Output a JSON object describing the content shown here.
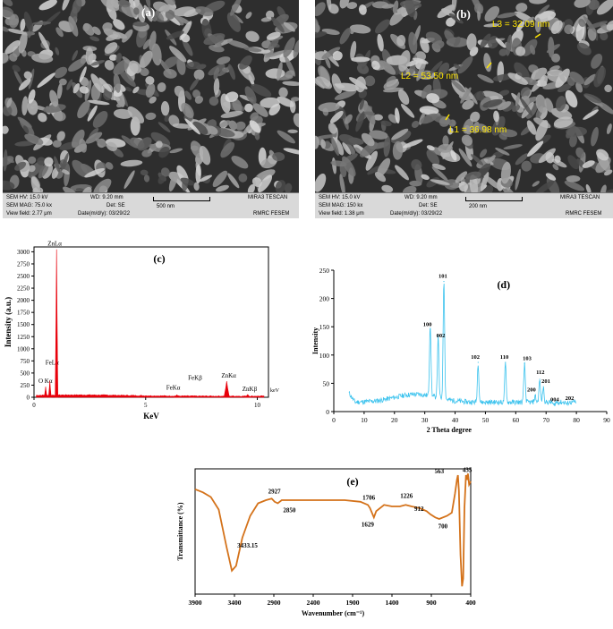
{
  "panels": {
    "a": {
      "label": "(a)",
      "info": {
        "hv": "SEM HV: 15.0 kV",
        "wd": "WD: 9.20 mm",
        "mag": "SEM MAG: 75.0 kx",
        "det": "Det: SE",
        "field": "View field: 2.77 μm",
        "date": "Date(m/d/y): 03/29/22",
        "scale": "500 nm",
        "brand": "MIRA3 TESCAN",
        "lab": "RMRC  FESEM"
      }
    },
    "b": {
      "label": "(b)",
      "measurements": [
        "L3 = 32.09 nm",
        "L2 = 53.50 nm",
        "L1 = 36.98 nm"
      ],
      "info": {
        "hv": "SEM HV: 15.0 kV",
        "wd": "WD: 9.20 mm",
        "mag": "SEM MAG: 150 kx",
        "det": "Det: SE",
        "field": "View field: 1.38 μm",
        "date": "Date(m/d/y): 03/29/22",
        "scale": "200 nm",
        "brand": "MIRA3 TESCAN",
        "lab": "RMRC  FESEM"
      }
    },
    "c": {
      "label": "(c)"
    },
    "d": {
      "label": "(d)"
    },
    "e": {
      "label": "(e)"
    }
  },
  "chart_data": [
    {
      "panel": "c",
      "type": "line",
      "xlabel": "KeV",
      "ylabel": "Intensity (a.u.)",
      "unit_label": "keV",
      "xlim": [
        0,
        10.5
      ],
      "ylim": [
        0,
        3100
      ],
      "x_ticks": [
        0,
        5,
        10
      ],
      "y_ticks": [
        0,
        250,
        500,
        750,
        1000,
        1250,
        1500,
        1750,
        2000,
        2250,
        2500,
        2750,
        3000
      ],
      "color": "#e8000b",
      "peaks": [
        {
          "x": 0.52,
          "y": 220,
          "label": "O Kα"
        },
        {
          "x": 0.71,
          "y": 340,
          "label": "FeLα"
        },
        {
          "x": 1.01,
          "y": 3050,
          "label": "ZnLα"
        },
        {
          "x": 6.4,
          "y": 50,
          "label": "FeKα"
        },
        {
          "x": 7.06,
          "y": 25,
          "label": "FeKβ"
        },
        {
          "x": 8.63,
          "y": 330,
          "label": "ZnKα"
        },
        {
          "x": 9.57,
          "y": 55,
          "label": "ZnKβ"
        }
      ]
    },
    {
      "panel": "d",
      "type": "line",
      "xlabel": "2 Theta degree",
      "ylabel": "Intensity",
      "xlim": [
        0,
        90
      ],
      "ylim": [
        0,
        250
      ],
      "x_ticks": [
        0,
        10,
        20,
        30,
        40,
        50,
        60,
        70,
        80,
        90
      ],
      "y_ticks": [
        0,
        50,
        100,
        150,
        200,
        250
      ],
      "color": "#3cc3ee",
      "peaks": [
        {
          "x": 31.8,
          "y": 145,
          "label": "100"
        },
        {
          "x": 34.4,
          "y": 125,
          "label": "002"
        },
        {
          "x": 36.3,
          "y": 230,
          "label": "101"
        },
        {
          "x": 47.6,
          "y": 87,
          "label": "102"
        },
        {
          "x": 56.6,
          "y": 87,
          "label": "110"
        },
        {
          "x": 62.9,
          "y": 85,
          "label": "103"
        },
        {
          "x": 66.4,
          "y": 29,
          "label": "200"
        },
        {
          "x": 67.9,
          "y": 57,
          "label": "112"
        },
        {
          "x": 69.1,
          "y": 44,
          "label": "201"
        },
        {
          "x": 72.6,
          "y": 12,
          "label": "004"
        },
        {
          "x": 76.9,
          "y": 14,
          "label": "202"
        }
      ]
    },
    {
      "panel": "e",
      "type": "line",
      "xlabel": "Wavenumber (cm⁻¹)",
      "ylabel": "Transmittance (%)",
      "xlim": [
        3900,
        400
      ],
      "x_ticks": [
        3900,
        3400,
        2900,
        2400,
        1900,
        1400,
        900,
        400
      ],
      "color": "#d4721a",
      "points": [
        [
          3900,
          87
        ],
        [
          3800,
          85
        ],
        [
          3700,
          82
        ],
        [
          3600,
          74
        ],
        [
          3500,
          50
        ],
        [
          3433.15,
          35
        ],
        [
          3380,
          38
        ],
        [
          3300,
          56
        ],
        [
          3200,
          70
        ],
        [
          3100,
          78
        ],
        [
          3000,
          80
        ],
        [
          2927,
          81
        ],
        [
          2890,
          79
        ],
        [
          2850,
          78
        ],
        [
          2800,
          80
        ],
        [
          2600,
          80
        ],
        [
          2400,
          80
        ],
        [
          2200,
          80
        ],
        [
          2000,
          80
        ],
        [
          1800,
          79
        ],
        [
          1706,
          77
        ],
        [
          1680,
          75
        ],
        [
          1629,
          69
        ],
        [
          1600,
          73
        ],
        [
          1500,
          77
        ],
        [
          1400,
          76
        ],
        [
          1300,
          76
        ],
        [
          1226,
          77
        ],
        [
          1150,
          76
        ],
        [
          1050,
          75
        ],
        [
          960,
          73
        ],
        [
          912,
          71
        ],
        [
          850,
          69
        ],
        [
          800,
          68
        ],
        [
          700,
          70
        ],
        [
          640,
          72
        ],
        [
          600,
          84
        ],
        [
          575,
          93
        ],
        [
          563,
          96
        ],
        [
          550,
          86
        ],
        [
          530,
          45
        ],
        [
          510,
          25
        ],
        [
          495,
          30
        ],
        [
          480,
          75
        ],
        [
          460,
          96
        ],
        [
          445,
          93
        ],
        [
          435,
          97
        ],
        [
          420,
          90
        ],
        [
          400,
          92
        ]
      ],
      "annotations": [
        {
          "x": 3433.15,
          "label": "3433.15"
        },
        {
          "x": 2927,
          "label": "2927"
        },
        {
          "x": 2850,
          "label": "2850"
        },
        {
          "x": 1706,
          "label": "1706"
        },
        {
          "x": 1629,
          "label": "1629"
        },
        {
          "x": 1226,
          "label": "1226"
        },
        {
          "x": 912,
          "label": "912"
        },
        {
          "x": 700,
          "label": "700"
        },
        {
          "x": 563,
          "label": "563"
        },
        {
          "x": 435,
          "label": "435"
        }
      ]
    }
  ]
}
